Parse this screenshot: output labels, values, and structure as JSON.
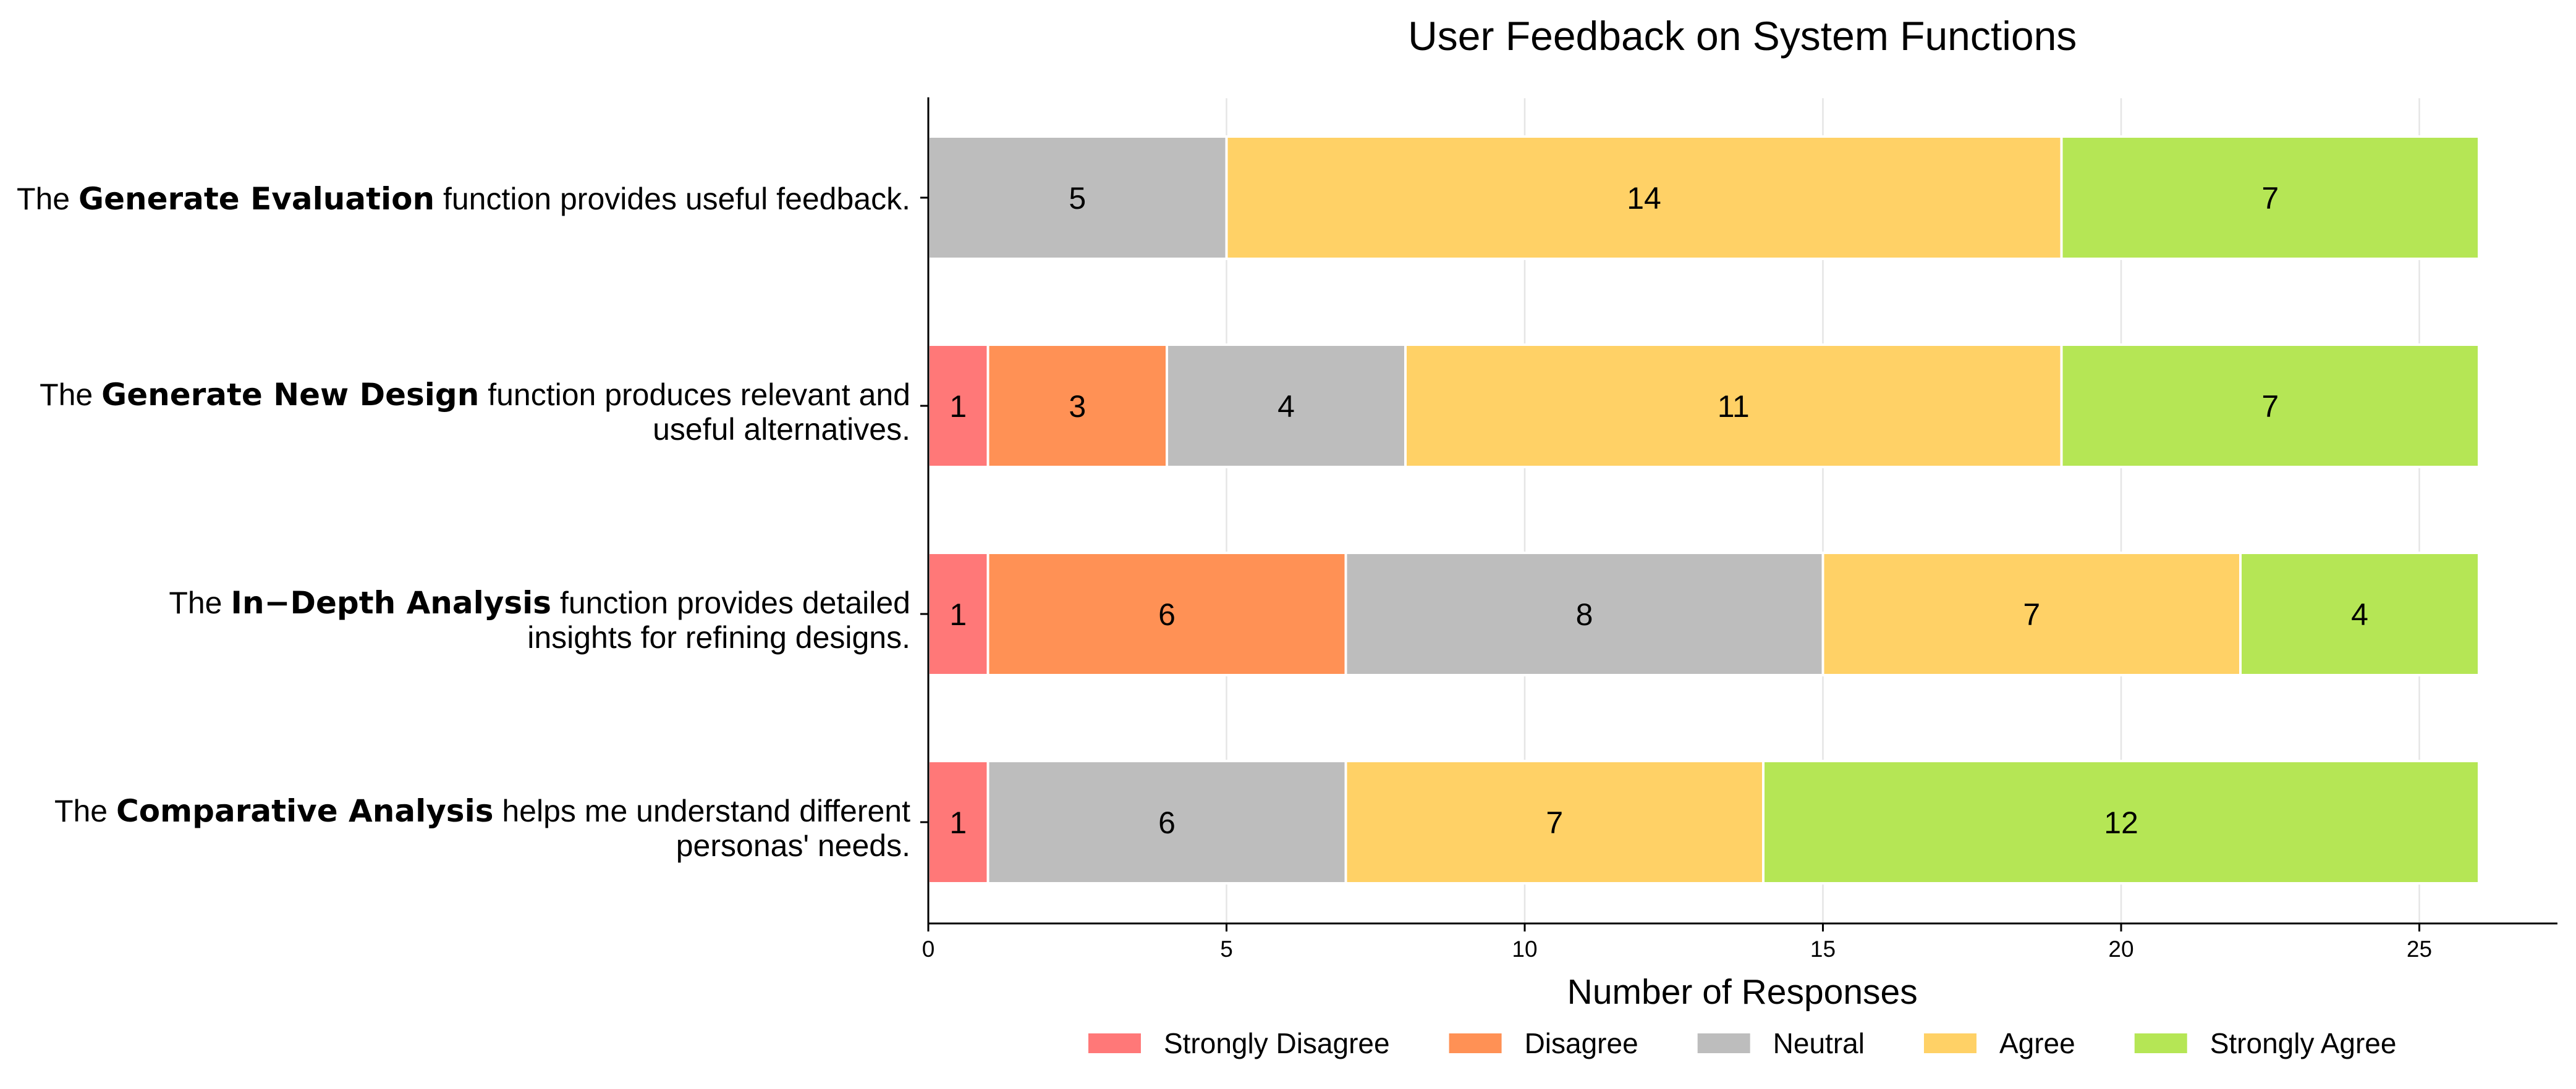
{
  "chart_data": {
    "type": "bar",
    "horizontal": true,
    "stacked": true,
    "grid": true,
    "title": "User Feedback on System Functions",
    "xlabel": "Number of Responses",
    "xlim": [
      0,
      27.3
    ],
    "xticks": [
      0,
      5,
      10,
      15,
      20,
      25
    ],
    "categories": [
      {
        "lead": "The",
        "emphasis": "Generate Evaluation",
        "tail": [
          "function provides useful feedback."
        ]
      },
      {
        "lead": "The",
        "emphasis": "Generate New Design",
        "tail": [
          "function produces relevant and",
          "useful alternatives."
        ]
      },
      {
        "lead": "The",
        "emphasis": "In−Depth Analysis",
        "tail": [
          "function provides detailed",
          "insights for refining designs."
        ]
      },
      {
        "lead": "The",
        "emphasis": "Comparative Analysis",
        "tail": [
          "helps me understand different",
          "personas' needs."
        ]
      }
    ],
    "series": [
      {
        "name": "Strongly Disagree",
        "color": "#FF7878",
        "values": [
          0,
          1,
          1,
          1
        ]
      },
      {
        "name": "Disagree",
        "color": "#FF9155",
        "values": [
          0,
          3,
          6,
          0
        ]
      },
      {
        "name": "Neutral",
        "color": "#BDBDBD",
        "values": [
          5,
          4,
          8,
          6
        ]
      },
      {
        "name": "Agree",
        "color": "#FFD166",
        "values": [
          14,
          11,
          7,
          7
        ]
      },
      {
        "name": "Strongly Agree",
        "color": "#B5E655",
        "values": [
          7,
          7,
          4,
          12
        ]
      }
    ]
  }
}
